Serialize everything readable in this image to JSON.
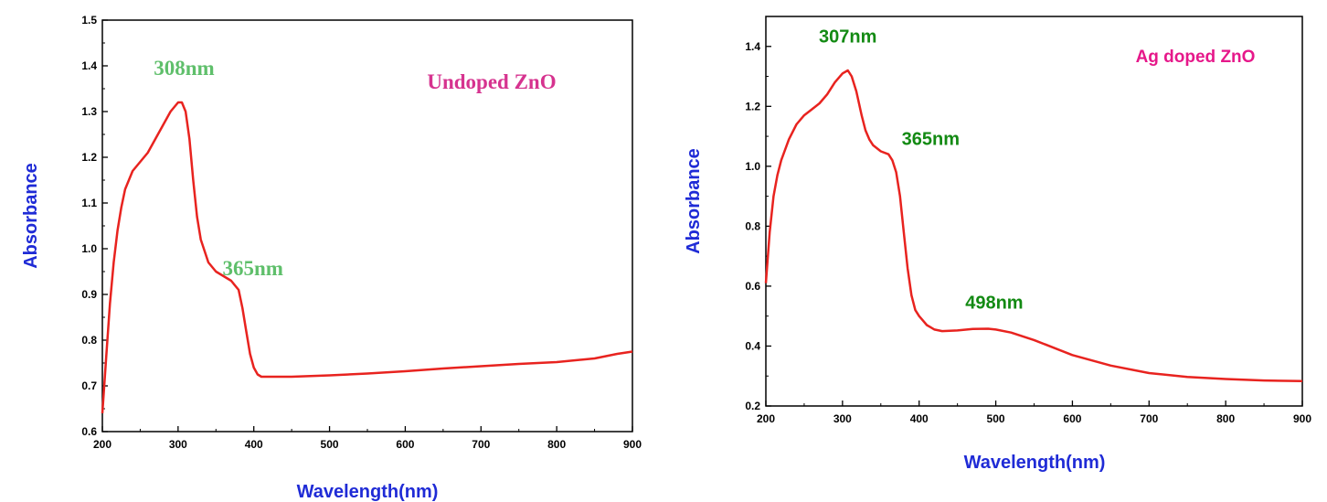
{
  "chart_data": [
    {
      "type": "line",
      "title": "",
      "xlabel": "Wavelength(nm)",
      "ylabel": "Absorbance",
      "xlim": [
        200,
        900
      ],
      "ylim": [
        0.6,
        1.5
      ],
      "x_ticks": [
        200,
        300,
        400,
        500,
        600,
        700,
        800,
        900
      ],
      "y_ticks": [
        0.6,
        0.7,
        0.8,
        0.9,
        1.0,
        1.1,
        1.2,
        1.3,
        1.4,
        1.5
      ],
      "x_tick_labels": [
        "200",
        "300",
        "400",
        "500",
        "600",
        "700",
        "800",
        "900"
      ],
      "y_tick_labels": [
        "0.6",
        "0.7",
        "0.8",
        "0.9",
        "1.0",
        "1.1",
        "1.2",
        "1.3",
        "1.4",
        "1.5"
      ],
      "grid": false,
      "series_color": "#e8231f",
      "sample_label": "Undoped ZnO",
      "annotations": [
        {
          "text": "308nm",
          "x": 308,
          "y": 1.36
        },
        {
          "text": "365nm",
          "x": 365,
          "y": 0.93
        }
      ],
      "series": [
        {
          "x": [
            200,
            205,
            210,
            215,
            220,
            225,
            230,
            240,
            250,
            260,
            270,
            280,
            290,
            300,
            305,
            310,
            315,
            320,
            325,
            330,
            340,
            350,
            360,
            370,
            380,
            385,
            390,
            395,
            400,
            405,
            410,
            420,
            450,
            500,
            550,
            600,
            650,
            700,
            750,
            800,
            850,
            880,
            900
          ],
          "y": [
            0.64,
            0.76,
            0.88,
            0.97,
            1.04,
            1.09,
            1.13,
            1.17,
            1.19,
            1.21,
            1.24,
            1.27,
            1.3,
            1.32,
            1.32,
            1.3,
            1.24,
            1.15,
            1.07,
            1.02,
            0.97,
            0.95,
            0.94,
            0.93,
            0.91,
            0.87,
            0.82,
            0.77,
            0.74,
            0.725,
            0.72,
            0.72,
            0.72,
            0.723,
            0.727,
            0.732,
            0.738,
            0.743,
            0.748,
            0.752,
            0.76,
            0.77,
            0.775
          ]
        }
      ]
    },
    {
      "type": "line",
      "title": "",
      "xlabel": "Wavelength(nm)",
      "ylabel": "Absorbance",
      "xlim": [
        200,
        900
      ],
      "ylim": [
        0.2,
        1.5
      ],
      "x_ticks": [
        200,
        300,
        400,
        500,
        600,
        700,
        800,
        900
      ],
      "y_ticks": [
        0.2,
        0.4,
        0.6,
        0.8,
        1.0,
        1.2,
        1.4
      ],
      "x_tick_labels": [
        "200",
        "300",
        "400",
        "500",
        "600",
        "700",
        "800",
        "900"
      ],
      "y_tick_labels": [
        "0.2",
        "0.4",
        "0.6",
        "0.8",
        "1.0",
        "1.2",
        "1.4"
      ],
      "grid": false,
      "series_color": "#e8231f",
      "sample_label": "Ag doped ZnO",
      "annotations": [
        {
          "text": "307nm",
          "x": 307,
          "y": 1.37
        },
        {
          "text": "365nm",
          "x": 365,
          "y": 1.04
        },
        {
          "text": "498nm",
          "x": 498,
          "y": 0.5
        }
      ],
      "series": [
        {
          "x": [
            200,
            205,
            210,
            215,
            220,
            230,
            240,
            250,
            260,
            270,
            280,
            290,
            300,
            307,
            312,
            318,
            325,
            330,
            335,
            340,
            350,
            360,
            365,
            370,
            375,
            380,
            385,
            390,
            395,
            400,
            405,
            410,
            420,
            430,
            450,
            470,
            490,
            500,
            520,
            550,
            600,
            650,
            700,
            750,
            800,
            850,
            900
          ],
          "y": [
            0.61,
            0.78,
            0.9,
            0.97,
            1.02,
            1.09,
            1.14,
            1.17,
            1.19,
            1.21,
            1.24,
            1.28,
            1.31,
            1.32,
            1.3,
            1.25,
            1.17,
            1.12,
            1.09,
            1.07,
            1.05,
            1.04,
            1.02,
            0.98,
            0.9,
            0.78,
            0.66,
            0.57,
            0.52,
            0.5,
            0.485,
            0.47,
            0.455,
            0.45,
            0.452,
            0.457,
            0.458,
            0.455,
            0.445,
            0.42,
            0.37,
            0.335,
            0.31,
            0.297,
            0.29,
            0.285,
            0.283
          ]
        }
      ]
    }
  ]
}
